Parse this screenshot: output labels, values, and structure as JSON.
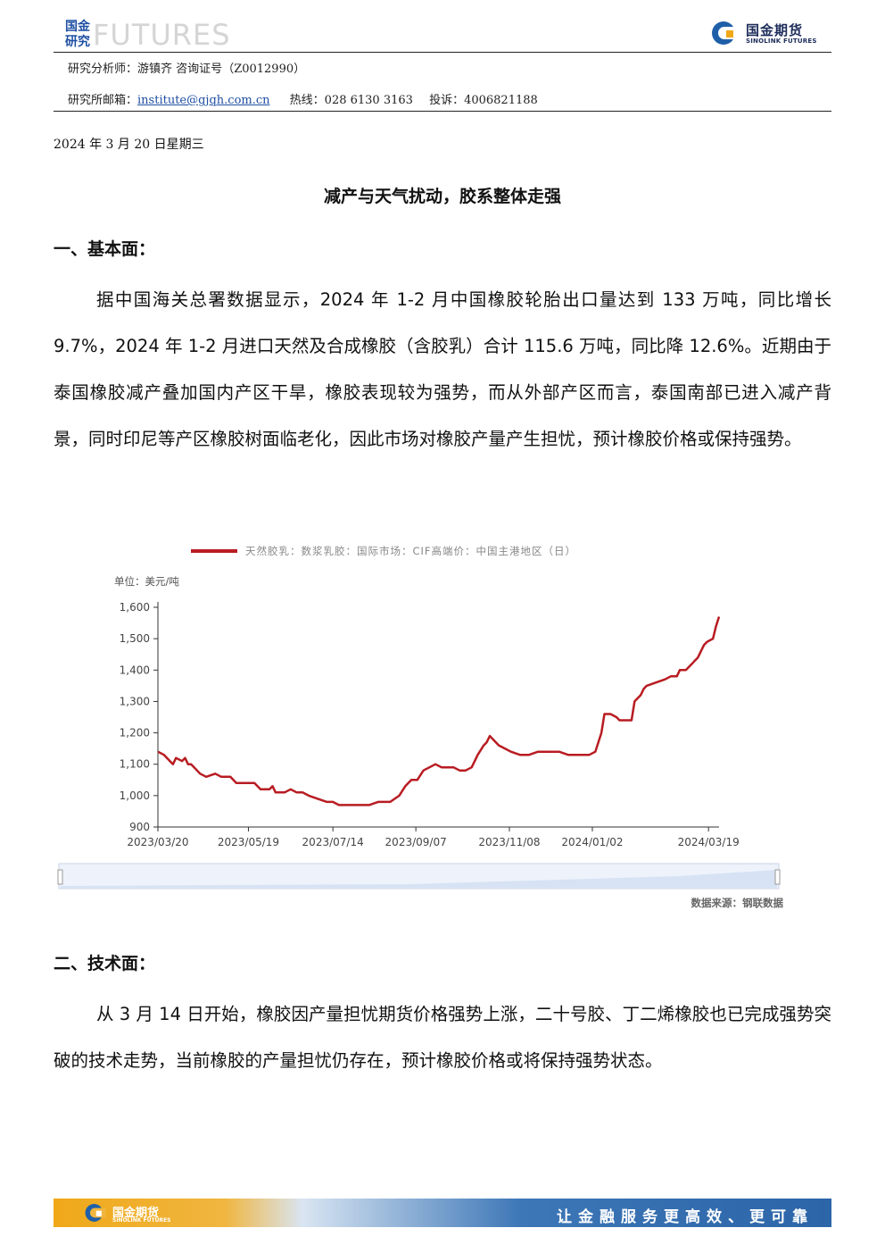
{
  "header": {
    "logo_cn": "国金研究",
    "logo_en": "FUTURES",
    "brand_cn": "国金期货",
    "brand_en": "SINOLINK FUTURES",
    "analyst_label": "研究分析师：",
    "analyst_name": "游镇齐",
    "cert_label": "咨询证号",
    "cert_no": "（Z0012990）",
    "email_label": "研究所邮箱：",
    "email": "institute@gjqh.com.cn",
    "hotline_label": "热线：",
    "hotline": "028 6130 3163",
    "complaint_label": "投诉：",
    "complaint": "4006821188"
  },
  "date": "2024 年 3 月 20 日星期三",
  "title": "减产与天气扰动，胶系整体走强",
  "sections": [
    {
      "heading": "一、基本面：",
      "paragraph": "据中国海关总署数据显示，2024 年 1-2 月中国橡胶轮胎出口量达到 133 万吨，同比增长 9.7%，2024 年 1-2 月进口天然及合成橡胶（含胶乳）合计 115.6 万吨，同比降 12.6%。近期由于泰国橡胶减产叠加国内产区干旱，橡胶表现较为强势，而从外部产区而言，泰国南部已进入减产背景，同时印尼等产区橡胶树面临老化，因此市场对橡胶产量产生担忧，预计橡胶价格或保持强势。"
    },
    {
      "heading": "二、技术面：",
      "paragraph": "从 3 月 14 日开始，橡胶因产量担忧期货价格强势上涨，二十号胶、丁二烯橡胶也已完成强势突破的技术走势，当前橡胶的产量担忧仍存在，预计橡胶价格或将保持强势状态。"
    }
  ],
  "chart_data": {
    "type": "line",
    "legend": "天然胶乳：数浆乳胶：国际市场：CIF高端价：中国主港地区（日）",
    "unit_label": "单位：美元/吨",
    "source": "数据来源：钢联数据",
    "ylim": [
      900,
      1600
    ],
    "y_ticks": [
      900,
      1000,
      1100,
      1200,
      1300,
      1400,
      1500,
      1600
    ],
    "y_tick_labels": [
      "900",
      "1,000",
      "1,100",
      "1,200",
      "1,300",
      "1,400",
      "1,500",
      "1,600"
    ],
    "x_tick_labels": [
      "2023/03/20",
      "2023/05/19",
      "2023/07/14",
      "2023/09/07",
      "2023/11/08",
      "2024/01/02",
      "2024/03/19"
    ],
    "x_tick_index": [
      0,
      60,
      116,
      171,
      233,
      288,
      365
    ],
    "series_color": "#b81c22",
    "points": [
      [
        0,
        1140
      ],
      [
        4,
        1130
      ],
      [
        8,
        1110
      ],
      [
        10,
        1100
      ],
      [
        12,
        1120
      ],
      [
        16,
        1110
      ],
      [
        18,
        1120
      ],
      [
        20,
        1100
      ],
      [
        22,
        1100
      ],
      [
        24,
        1090
      ],
      [
        28,
        1070
      ],
      [
        32,
        1060
      ],
      [
        38,
        1070
      ],
      [
        42,
        1060
      ],
      [
        48,
        1060
      ],
      [
        52,
        1040
      ],
      [
        58,
        1040
      ],
      [
        64,
        1040
      ],
      [
        68,
        1020
      ],
      [
        74,
        1020
      ],
      [
        76,
        1030
      ],
      [
        78,
        1010
      ],
      [
        84,
        1010
      ],
      [
        88,
        1020
      ],
      [
        92,
        1010
      ],
      [
        96,
        1010
      ],
      [
        100,
        1000
      ],
      [
        106,
        990
      ],
      [
        112,
        980
      ],
      [
        116,
        980
      ],
      [
        120,
        970
      ],
      [
        126,
        970
      ],
      [
        134,
        970
      ],
      [
        140,
        970
      ],
      [
        146,
        980
      ],
      [
        154,
        980
      ],
      [
        160,
        1000
      ],
      [
        164,
        1030
      ],
      [
        168,
        1050
      ],
      [
        172,
        1050
      ],
      [
        176,
        1080
      ],
      [
        180,
        1090
      ],
      [
        184,
        1100
      ],
      [
        188,
        1090
      ],
      [
        192,
        1090
      ],
      [
        196,
        1090
      ],
      [
        200,
        1080
      ],
      [
        204,
        1080
      ],
      [
        208,
        1090
      ],
      [
        212,
        1130
      ],
      [
        216,
        1160
      ],
      [
        218,
        1170
      ],
      [
        220,
        1190
      ],
      [
        222,
        1180
      ],
      [
        226,
        1160
      ],
      [
        230,
        1150
      ],
      [
        234,
        1140
      ],
      [
        240,
        1130
      ],
      [
        246,
        1130
      ],
      [
        252,
        1140
      ],
      [
        260,
        1140
      ],
      [
        266,
        1140
      ],
      [
        272,
        1130
      ],
      [
        280,
        1130
      ],
      [
        286,
        1130
      ],
      [
        290,
        1140
      ],
      [
        294,
        1200
      ],
      [
        296,
        1260
      ],
      [
        300,
        1260
      ],
      [
        304,
        1250
      ],
      [
        306,
        1240
      ],
      [
        310,
        1240
      ],
      [
        314,
        1240
      ],
      [
        316,
        1300
      ],
      [
        320,
        1320
      ],
      [
        322,
        1340
      ],
      [
        324,
        1350
      ],
      [
        330,
        1360
      ],
      [
        336,
        1370
      ],
      [
        340,
        1380
      ],
      [
        344,
        1380
      ],
      [
        346,
        1400
      ],
      [
        350,
        1400
      ],
      [
        352,
        1410
      ],
      [
        354,
        1420
      ],
      [
        356,
        1430
      ],
      [
        358,
        1440
      ],
      [
        360,
        1460
      ],
      [
        362,
        1480
      ],
      [
        364,
        1490
      ],
      [
        368,
        1500
      ],
      [
        370,
        1540
      ],
      [
        372,
        1570
      ]
    ]
  },
  "footer": {
    "brand_cn": "国金期货",
    "brand_en": "SINOLINK FUTURES",
    "slogan": "让金融服务更高效、更可靠"
  }
}
